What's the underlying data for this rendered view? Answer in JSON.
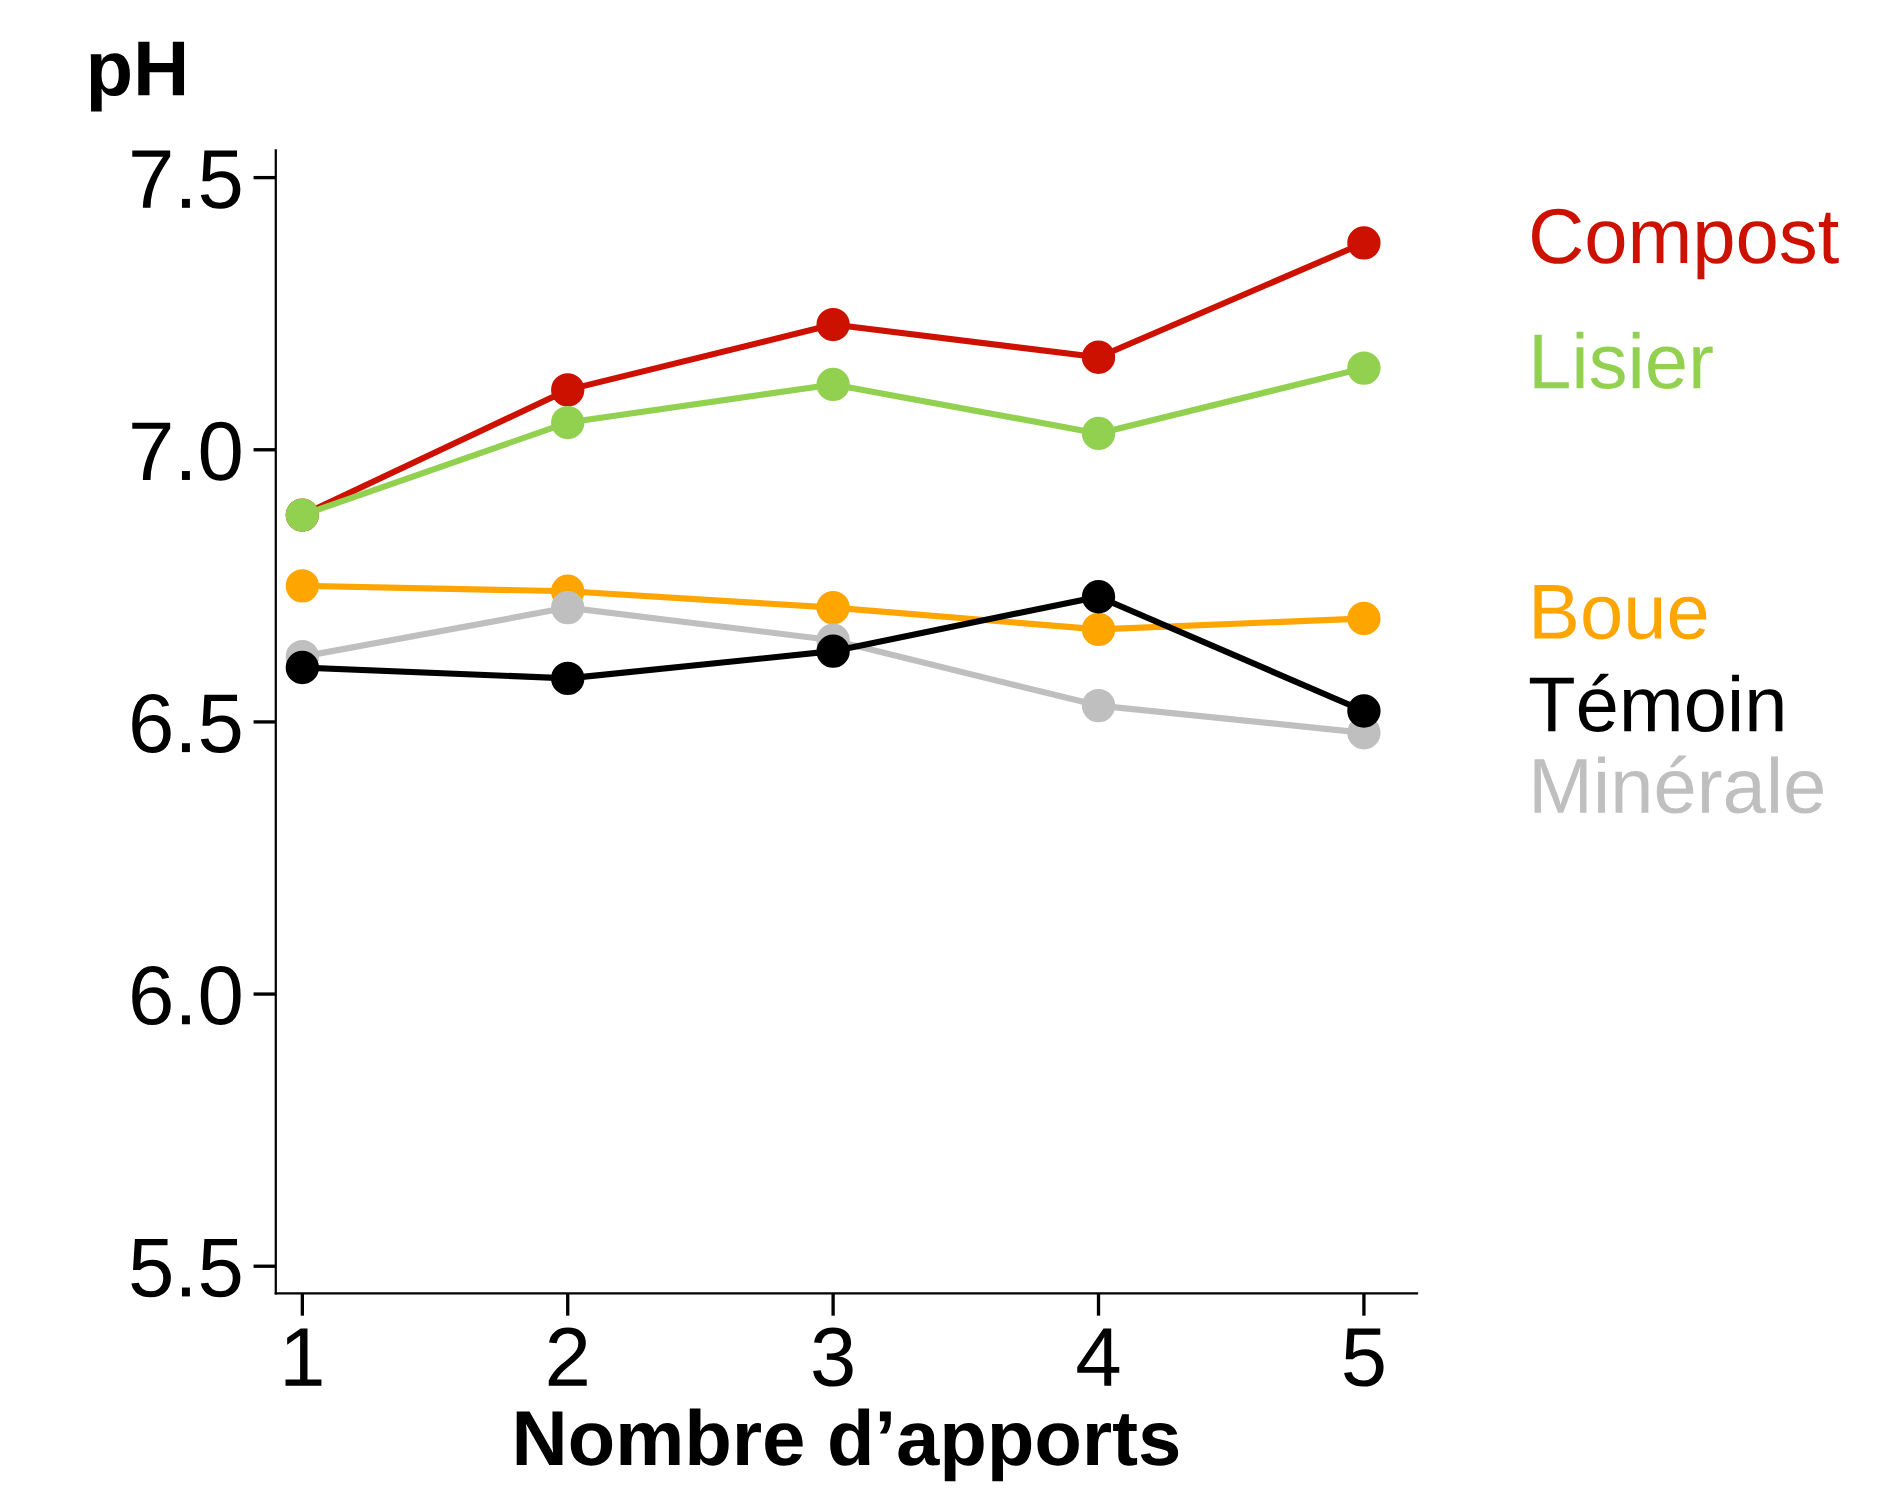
{
  "chart_data": {
    "type": "line",
    "xlabel": "Nombre d’apports",
    "ylabel": "pH",
    "x": [
      1,
      2,
      3,
      4,
      5
    ],
    "series": [
      {
        "name": "Compost",
        "color": "#cc1100",
        "values": [
          6.88,
          7.11,
          7.23,
          7.17,
          7.38
        ]
      },
      {
        "name": "Lisier",
        "color": "#92d050",
        "values": [
          6.88,
          7.05,
          7.12,
          7.03,
          7.15
        ]
      },
      {
        "name": "Boue",
        "color": "#ffa500",
        "values": [
          6.75,
          6.74,
          6.71,
          6.67,
          6.69
        ]
      },
      {
        "name": "Minérale",
        "color": "#bfbfbf",
        "values": [
          6.62,
          6.71,
          6.65,
          6.53,
          6.48
        ]
      },
      {
        "name": "Témoin",
        "color": "#000000",
        "values": [
          6.6,
          6.58,
          6.63,
          6.73,
          6.52
        ]
      }
    ],
    "xlim": [
      0.9,
      5.2
    ],
    "xticks": [
      1,
      2,
      3,
      4,
      5
    ],
    "ylim": [
      5.45,
      7.55
    ],
    "yticks": [
      {
        "value": 5.5,
        "label": "5.5"
      },
      {
        "value": 6.0,
        "label": "6.0"
      },
      {
        "value": 6.5,
        "label": "6.5"
      },
      {
        "value": 7.0,
        "label": "7.0"
      },
      {
        "value": 7.5,
        "label": "7.5"
      }
    ],
    "marker": "circle",
    "line_style": "solid",
    "grid": false
  }
}
